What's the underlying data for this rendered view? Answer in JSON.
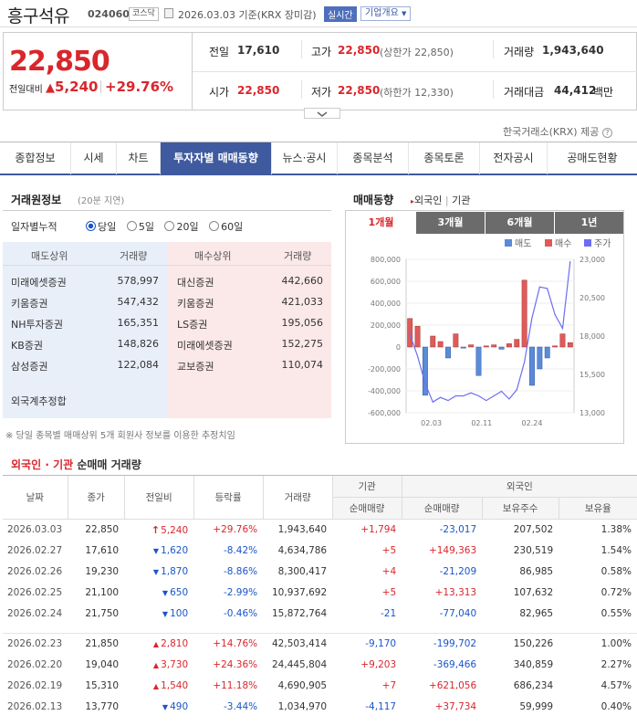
{
  "header": {
    "title": "흥구석유",
    "code": "024060",
    "market": "코스닥",
    "date": "2026.03.03",
    "basis": "기준(KRX 장미감)",
    "live": "실시간",
    "corp_info": "기업개요"
  },
  "price": {
    "current": "22,850",
    "change_label": "전일대비",
    "change": "5,240",
    "change_pct": "+29.76%",
    "prev_label": "전일",
    "prev": "17,610",
    "high_label": "고가",
    "high": "22,850",
    "upper": "(상한가 22,850)",
    "volume_label": "거래량",
    "volume": "1,943,640",
    "open_label": "시가",
    "open": "22,850",
    "low_label": "저가",
    "low": "22,850",
    "lower": "(하한가 12,330)",
    "amount_label": "거래대금",
    "amount": "44,412",
    "amount_unit": "백만"
  },
  "provider": "한국거래소(KRX) 제공",
  "tabs": [
    "종합정보",
    "시세",
    "차트",
    "투자자별 매매동향",
    "뉴스·공시",
    "종목분석",
    "종목토론",
    "전자공시",
    "공매도현황"
  ],
  "broker": {
    "title": "거래원정보",
    "delay": "(20분 지연)",
    "period_label": "일자별누적",
    "options": [
      "당일",
      "5일",
      "20일",
      "60일"
    ],
    "sell_head": "매도상위",
    "buy_head": "매수상위",
    "vol_head": "거래량",
    "sell": [
      {
        "name": "미래에셋증권",
        "vol": "578,997"
      },
      {
        "name": "키움증권",
        "vol": "547,432"
      },
      {
        "name": "NH투자증권",
        "vol": "165,351"
      },
      {
        "name": "KB증권",
        "vol": "148,826"
      },
      {
        "name": "삼성증권",
        "vol": "122,084"
      }
    ],
    "buy": [
      {
        "name": "대신증권",
        "vol": "442,660"
      },
      {
        "name": "키움증권",
        "vol": "421,033"
      },
      {
        "name": "LS증권",
        "vol": "195,056"
      },
      {
        "name": "미래에셋증권",
        "vol": "152,275"
      },
      {
        "name": "교보증권",
        "vol": "110,074"
      }
    ],
    "foreign_total": "외국계추정합",
    "note": "※ 당일 종목별 매매상위 5개 회원사 정보를 이용한 추정치임"
  },
  "trend": {
    "title": "매매동향",
    "link1": "외국인",
    "link2": "기관",
    "periods": [
      "1개월",
      "3개월",
      "6개월",
      "1년"
    ]
  },
  "chart_data": {
    "type": "bar",
    "legend": [
      "매도",
      "매수",
      "주가"
    ],
    "colors": {
      "sell": "#5b8bd8",
      "buy": "#e05a5a",
      "price": "#6d6df2"
    },
    "y_left": {
      "min": -600000,
      "max": 800000,
      "ticks": [
        "800,000",
        "600,000",
        "400,000",
        "200,000",
        "0",
        "-200,000",
        "-400,000",
        "-600,000"
      ]
    },
    "y_right": {
      "min": 13000,
      "max": 23000,
      "ticks": [
        "23,000",
        "20,500",
        "18,000",
        "15,500",
        "13,000"
      ]
    },
    "x_ticks": [
      "02.03",
      "02.11",
      "02.24"
    ],
    "values": [
      260000,
      190000,
      -440000,
      100000,
      50000,
      -100000,
      120000,
      -10000,
      20000,
      -260000,
      10000,
      20000,
      -20000,
      30000,
      70000,
      610000,
      -350000,
      -200000,
      -100000,
      10000,
      120000,
      40000
    ],
    "price": [
      18100,
      16700,
      14900,
      13700,
      14000,
      13800,
      14100,
      14100,
      14300,
      14100,
      13800,
      14100,
      14400,
      13900,
      14500,
      16300,
      19200,
      21200,
      21100,
      19400,
      18500,
      22850
    ]
  },
  "bottom": {
    "title1": "외국인",
    "sep": "·",
    "title2": "기관",
    "title3": "순매매 거래량",
    "headers": [
      "날짜",
      "종가",
      "전일비",
      "등락률",
      "거래량",
      "기관",
      "외국인",
      "순매매량",
      "순매매량",
      "보유주수",
      "보유율"
    ],
    "rows": [
      {
        "date": "2026.03.03",
        "close": "22,850",
        "chg": "5,240",
        "dir": "up2",
        "rate": "+29.76%",
        "vol": "1,943,640",
        "inst": "+1,794",
        "fnet": "-23,017",
        "fhold": "207,502",
        "frate": "1.38%"
      },
      {
        "date": "2026.02.27",
        "close": "17,610",
        "chg": "1,620",
        "dir": "dn",
        "rate": "-8.42%",
        "vol": "4,634,786",
        "inst": "+5",
        "fnet": "+149,363",
        "fhold": "230,519",
        "frate": "1.54%"
      },
      {
        "date": "2026.02.26",
        "close": "19,230",
        "chg": "1,870",
        "dir": "dn",
        "rate": "-8.86%",
        "vol": "8,300,417",
        "inst": "+4",
        "fnet": "-21,209",
        "fhold": "86,985",
        "frate": "0.58%"
      },
      {
        "date": "2026.02.25",
        "close": "21,100",
        "chg": "650",
        "dir": "dn",
        "rate": "-2.99%",
        "vol": "10,937,692",
        "inst": "+5",
        "fnet": "+13,313",
        "fhold": "107,632",
        "frate": "0.72%"
      },
      {
        "date": "2026.02.24",
        "close": "21,750",
        "chg": "100",
        "dir": "dn",
        "rate": "-0.46%",
        "vol": "15,872,764",
        "inst": "-21",
        "fnet": "-77,040",
        "fhold": "82,965",
        "frate": "0.55%"
      },
      {
        "date": "2026.02.23",
        "close": "21,850",
        "chg": "2,810",
        "dir": "up",
        "rate": "+14.76%",
        "vol": "42,503,414",
        "inst": "-9,170",
        "fnet": "-199,702",
        "fhold": "150,226",
        "frate": "1.00%"
      },
      {
        "date": "2026.02.20",
        "close": "19,040",
        "chg": "3,730",
        "dir": "up",
        "rate": "+24.36%",
        "vol": "24,445,804",
        "inst": "+9,203",
        "fnet": "-369,466",
        "fhold": "340,859",
        "frate": "2.27%"
      },
      {
        "date": "2026.02.19",
        "close": "15,310",
        "chg": "1,540",
        "dir": "up",
        "rate": "+11.18%",
        "vol": "4,690,905",
        "inst": "+7",
        "fnet": "+621,056",
        "fhold": "686,234",
        "frate": "4.57%"
      },
      {
        "date": "2026.02.13",
        "close": "13,770",
        "chg": "490",
        "dir": "dn",
        "rate": "-3.44%",
        "vol": "1,034,970",
        "inst": "-4,117",
        "fnet": "+37,734",
        "fhold": "59,999",
        "frate": "0.40%"
      }
    ]
  }
}
